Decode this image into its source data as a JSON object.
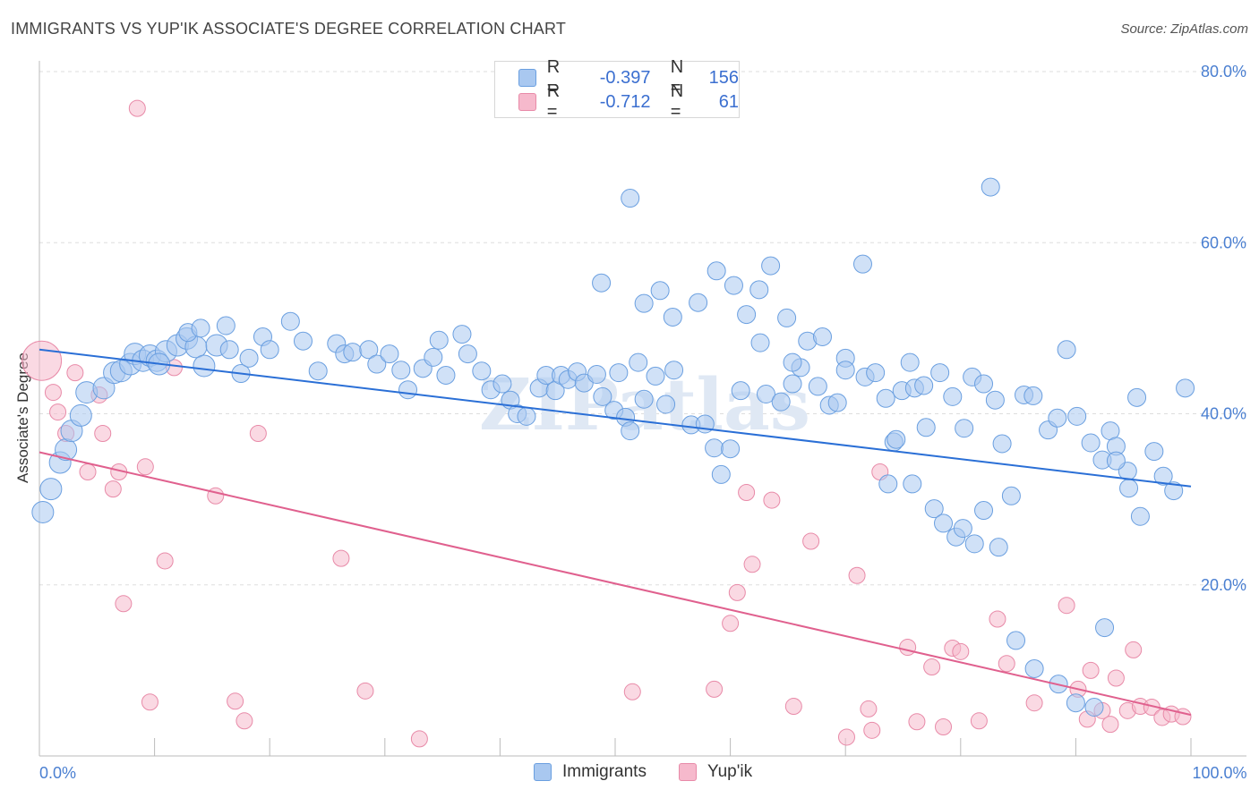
{
  "title": "IMMIGRANTS VS YUP'IK ASSOCIATE'S DEGREE CORRELATION CHART",
  "source": "Source: ZipAtlas.com",
  "watermark": "ZIPatlas",
  "colors": {
    "immigrants_fill": "#a9c8f0",
    "immigrants_stroke": "#6a9fe0",
    "immigrants_line": "#2a6fd6",
    "yupik_fill": "#f6b9cc",
    "yupik_stroke": "#e88aa8",
    "yupik_line": "#e0608e",
    "tick_text": "#4a7fd1",
    "grid": "#dddddd"
  },
  "legend_top": {
    "rows": [
      {
        "r_label": "R =",
        "r_value": "-0.397",
        "n_label": "N =",
        "n_value": "156"
      },
      {
        "r_label": "R =",
        "r_value": "-0.712",
        "n_label": "N =",
        "n_value": "61"
      }
    ]
  },
  "legend_bottom": {
    "items": [
      "Immigrants",
      "Yup'ik"
    ]
  },
  "chart_data": {
    "type": "scatter",
    "title": "IMMIGRANTS VS YUP'IK ASSOCIATE'S DEGREE CORRELATION CHART",
    "xlabel": "",
    "ylabel": "Associate's Degree",
    "xlim": [
      0,
      100
    ],
    "ylim": [
      0,
      80
    ],
    "y_ticks": [
      "80.0%",
      "60.0%",
      "40.0%",
      "20.0%"
    ],
    "y_tick_values": [
      80,
      60,
      40,
      20
    ],
    "x_tick_labels": [
      "0.0%",
      "100.0%"
    ],
    "x_tick_label_values": [
      0,
      100
    ],
    "x_minor_ticks": [
      0,
      10,
      20,
      30,
      40,
      50,
      60,
      70,
      80,
      90,
      100
    ],
    "grid": true,
    "legend_placement": "bottom-center",
    "series": [
      {
        "name": "Immigrants",
        "trend": [
          [
            0,
            47.5
          ],
          [
            100,
            31.5
          ]
        ],
        "points": [
          [
            0.3,
            28.5,
            12
          ],
          [
            1.0,
            31.2,
            12
          ],
          [
            1.8,
            34.3,
            12
          ],
          [
            2.3,
            35.8,
            12
          ],
          [
            2.8,
            38.0,
            12
          ],
          [
            3.6,
            39.8,
            12
          ],
          [
            4.1,
            42.5,
            12
          ],
          [
            5.6,
            43.0,
            12
          ],
          [
            6.5,
            44.8,
            12
          ],
          [
            7.1,
            45.0,
            12
          ],
          [
            7.9,
            45.8,
            12
          ],
          [
            8.3,
            47.0,
            12
          ],
          [
            9.0,
            46.2,
            12
          ],
          [
            9.6,
            46.8,
            12
          ],
          [
            10.2,
            46.2,
            12
          ],
          [
            11.0,
            47.3,
            12
          ],
          [
            10.4,
            45.8,
            12
          ],
          [
            12.0,
            48.0,
            12
          ],
          [
            12.8,
            48.8,
            12
          ],
          [
            13.6,
            47.8,
            12
          ],
          [
            14.3,
            45.6,
            12
          ],
          [
            15.4,
            48.0,
            12
          ],
          [
            16.2,
            50.3,
            10
          ],
          [
            12.9,
            49.5,
            10
          ],
          [
            14.0,
            50.0,
            10
          ],
          [
            16.5,
            47.5,
            10
          ],
          [
            17.5,
            44.7,
            10
          ],
          [
            18.2,
            46.5,
            10
          ],
          [
            19.4,
            49.0,
            10
          ],
          [
            20.0,
            47.5,
            10
          ],
          [
            21.8,
            50.8,
            10
          ],
          [
            22.9,
            48.5,
            10
          ],
          [
            24.2,
            45.0,
            10
          ],
          [
            25.8,
            48.2,
            10
          ],
          [
            26.5,
            47.0,
            10
          ],
          [
            27.2,
            47.2,
            10
          ],
          [
            28.6,
            47.5,
            10
          ],
          [
            29.3,
            45.8,
            10
          ],
          [
            30.4,
            47.0,
            10
          ],
          [
            31.4,
            45.1,
            10
          ],
          [
            32.0,
            42.8,
            10
          ],
          [
            33.3,
            45.3,
            10
          ],
          [
            34.2,
            46.6,
            10
          ],
          [
            34.7,
            48.6,
            10
          ],
          [
            35.3,
            44.5,
            10
          ],
          [
            36.7,
            49.3,
            10
          ],
          [
            37.2,
            47.0,
            10
          ],
          [
            38.4,
            45.0,
            10
          ],
          [
            39.2,
            42.8,
            10
          ],
          [
            40.2,
            43.5,
            10
          ],
          [
            40.9,
            41.6,
            10
          ],
          [
            41.5,
            40.0,
            10
          ],
          [
            42.3,
            39.7,
            10
          ],
          [
            43.4,
            43.0,
            10
          ],
          [
            44.0,
            44.5,
            10
          ],
          [
            44.8,
            42.7,
            10
          ],
          [
            45.3,
            44.5,
            10
          ],
          [
            45.9,
            44.0,
            10
          ],
          [
            46.7,
            44.9,
            10
          ],
          [
            47.3,
            43.6,
            10
          ],
          [
            48.4,
            44.6,
            10
          ],
          [
            48.9,
            42.0,
            10
          ],
          [
            49.9,
            40.4,
            10
          ],
          [
            50.3,
            44.8,
            10
          ],
          [
            50.9,
            39.6,
            10
          ],
          [
            51.3,
            38.0,
            10
          ],
          [
            52.0,
            46.0,
            10
          ],
          [
            52.5,
            41.7,
            10
          ],
          [
            53.5,
            44.4,
            10
          ],
          [
            54.4,
            41.1,
            10
          ],
          [
            55.1,
            45.1,
            10
          ],
          [
            56.6,
            38.7,
            10
          ],
          [
            57.8,
            38.8,
            10
          ],
          [
            58.6,
            36.0,
            10
          ],
          [
            59.2,
            32.9,
            10
          ],
          [
            60.0,
            35.9,
            10
          ],
          [
            60.9,
            42.7,
            10
          ],
          [
            62.6,
            48.3,
            10
          ],
          [
            63.1,
            42.3,
            10
          ],
          [
            64.4,
            41.4,
            10
          ],
          [
            65.4,
            43.5,
            10
          ],
          [
            66.1,
            45.4,
            10
          ],
          [
            66.7,
            48.5,
            10
          ],
          [
            67.6,
            43.2,
            10
          ],
          [
            68.6,
            41.0,
            10
          ],
          [
            69.3,
            41.3,
            10
          ],
          [
            70.0,
            46.5,
            10
          ],
          [
            71.7,
            44.3,
            10
          ],
          [
            72.6,
            44.8,
            10
          ],
          [
            73.5,
            41.8,
            10
          ],
          [
            74.2,
            36.7,
            10
          ],
          [
            74.9,
            42.7,
            10
          ],
          [
            75.6,
            46.0,
            10
          ],
          [
            76.0,
            43.0,
            10
          ],
          [
            76.8,
            43.3,
            10
          ],
          [
            78.2,
            44.8,
            10
          ],
          [
            79.3,
            42.0,
            10
          ],
          [
            80.3,
            38.3,
            10
          ],
          [
            81.0,
            44.3,
            10
          ],
          [
            82.0,
            43.5,
            10
          ],
          [
            83.0,
            41.6,
            10
          ],
          [
            83.6,
            36.5,
            10
          ],
          [
            84.4,
            30.4,
            10
          ],
          [
            85.5,
            42.2,
            10
          ],
          [
            86.3,
            42.1,
            10
          ],
          [
            87.6,
            38.1,
            10
          ],
          [
            88.4,
            39.5,
            10
          ],
          [
            89.2,
            47.5,
            10
          ],
          [
            90.1,
            39.7,
            10
          ],
          [
            91.3,
            36.6,
            10
          ],
          [
            92.3,
            34.6,
            10
          ],
          [
            93.0,
            38.0,
            10
          ],
          [
            93.5,
            36.2,
            10
          ],
          [
            94.5,
            33.3,
            10
          ],
          [
            95.3,
            41.9,
            10
          ],
          [
            96.8,
            35.6,
            10
          ],
          [
            97.6,
            32.7,
            10
          ],
          [
            98.5,
            31.0,
            10
          ],
          [
            99.5,
            43.0,
            10
          ],
          [
            48.8,
            55.3,
            10
          ],
          [
            51.3,
            65.2,
            10
          ],
          [
            52.5,
            52.9,
            10
          ],
          [
            53.9,
            54.4,
            10
          ],
          [
            55.0,
            51.3,
            10
          ],
          [
            57.2,
            53.0,
            10
          ],
          [
            58.8,
            56.7,
            10
          ],
          [
            60.3,
            55.0,
            10
          ],
          [
            61.4,
            51.6,
            10
          ],
          [
            62.5,
            54.5,
            10
          ],
          [
            63.5,
            57.3,
            10
          ],
          [
            64.9,
            51.2,
            10
          ],
          [
            65.4,
            46.0,
            10
          ],
          [
            68.0,
            49.0,
            10
          ],
          [
            70.0,
            45.1,
            10
          ],
          [
            71.5,
            57.5,
            10
          ],
          [
            73.7,
            31.8,
            10
          ],
          [
            74.4,
            37.0,
            10
          ],
          [
            75.8,
            31.8,
            10
          ],
          [
            77.0,
            38.4,
            10
          ],
          [
            77.7,
            28.9,
            10
          ],
          [
            78.5,
            27.2,
            10
          ],
          [
            79.6,
            25.6,
            10
          ],
          [
            80.2,
            26.6,
            10
          ],
          [
            81.2,
            24.8,
            10
          ],
          [
            82.0,
            28.7,
            10
          ],
          [
            83.3,
            24.4,
            10
          ],
          [
            84.8,
            13.5,
            10
          ],
          [
            86.4,
            10.2,
            10
          ],
          [
            88.5,
            8.4,
            10
          ],
          [
            90.0,
            6.2,
            10
          ],
          [
            91.6,
            5.7,
            10
          ],
          [
            92.5,
            15.0,
            10
          ],
          [
            93.5,
            34.5,
            10
          ],
          [
            94.6,
            31.3,
            10
          ],
          [
            95.6,
            28.0,
            10
          ],
          [
            82.6,
            66.5,
            10
          ]
        ]
      },
      {
        "name": "Yup'ik",
        "trend": [
          [
            0,
            35.5
          ],
          [
            100,
            4.8
          ]
        ],
        "points": [
          [
            0.2,
            46.2,
            22
          ],
          [
            1.2,
            42.5,
            9
          ],
          [
            1.6,
            40.2,
            9
          ],
          [
            2.3,
            37.7,
            9
          ],
          [
            3.1,
            44.8,
            9
          ],
          [
            4.2,
            33.2,
            9
          ],
          [
            5.2,
            42.2,
            9
          ],
          [
            5.5,
            37.7,
            9
          ],
          [
            6.4,
            31.2,
            9
          ],
          [
            6.9,
            33.2,
            9
          ],
          [
            7.3,
            17.8,
            9
          ],
          [
            8.5,
            75.7,
            9
          ],
          [
            9.2,
            33.8,
            9
          ],
          [
            9.6,
            6.3,
            9
          ],
          [
            10.9,
            22.8,
            9
          ],
          [
            11.7,
            45.4,
            9
          ],
          [
            15.3,
            30.4,
            9
          ],
          [
            17.0,
            6.4,
            9
          ],
          [
            17.8,
            4.1,
            9
          ],
          [
            19.0,
            37.7,
            9
          ],
          [
            26.2,
            23.1,
            9
          ],
          [
            28.3,
            7.6,
            9
          ],
          [
            33.0,
            2.0,
            9
          ],
          [
            51.5,
            7.5,
            9
          ],
          [
            58.6,
            7.8,
            9
          ],
          [
            60.0,
            15.5,
            9
          ],
          [
            60.6,
            19.1,
            9
          ],
          [
            61.4,
            30.8,
            9
          ],
          [
            61.9,
            22.4,
            9
          ],
          [
            63.6,
            29.9,
            9
          ],
          [
            65.5,
            5.8,
            9
          ],
          [
            67.0,
            25.1,
            9
          ],
          [
            70.1,
            2.2,
            9
          ],
          [
            71.0,
            21.1,
            9
          ],
          [
            72.0,
            5.5,
            9
          ],
          [
            72.3,
            3.0,
            9
          ],
          [
            73.0,
            33.2,
            9
          ],
          [
            75.4,
            12.7,
            9
          ],
          [
            76.2,
            4.0,
            9
          ],
          [
            77.5,
            10.4,
            9
          ],
          [
            78.5,
            3.4,
            9
          ],
          [
            79.3,
            12.6,
            9
          ],
          [
            80.0,
            12.2,
            9
          ],
          [
            81.6,
            4.1,
            9
          ],
          [
            83.2,
            16.0,
            9
          ],
          [
            84.0,
            10.8,
            9
          ],
          [
            86.4,
            6.2,
            9
          ],
          [
            89.2,
            17.6,
            9
          ],
          [
            90.2,
            7.8,
            9
          ],
          [
            91.0,
            4.3,
            9
          ],
          [
            91.3,
            10.0,
            9
          ],
          [
            92.3,
            5.3,
            9
          ],
          [
            93.0,
            3.7,
            9
          ],
          [
            93.5,
            9.1,
            9
          ],
          [
            94.5,
            5.3,
            9
          ],
          [
            95.0,
            12.4,
            9
          ],
          [
            95.6,
            5.8,
            9
          ],
          [
            96.6,
            5.7,
            9
          ],
          [
            97.5,
            4.5,
            9
          ],
          [
            98.3,
            4.9,
            9
          ],
          [
            99.3,
            4.6,
            9
          ]
        ]
      }
    ]
  }
}
